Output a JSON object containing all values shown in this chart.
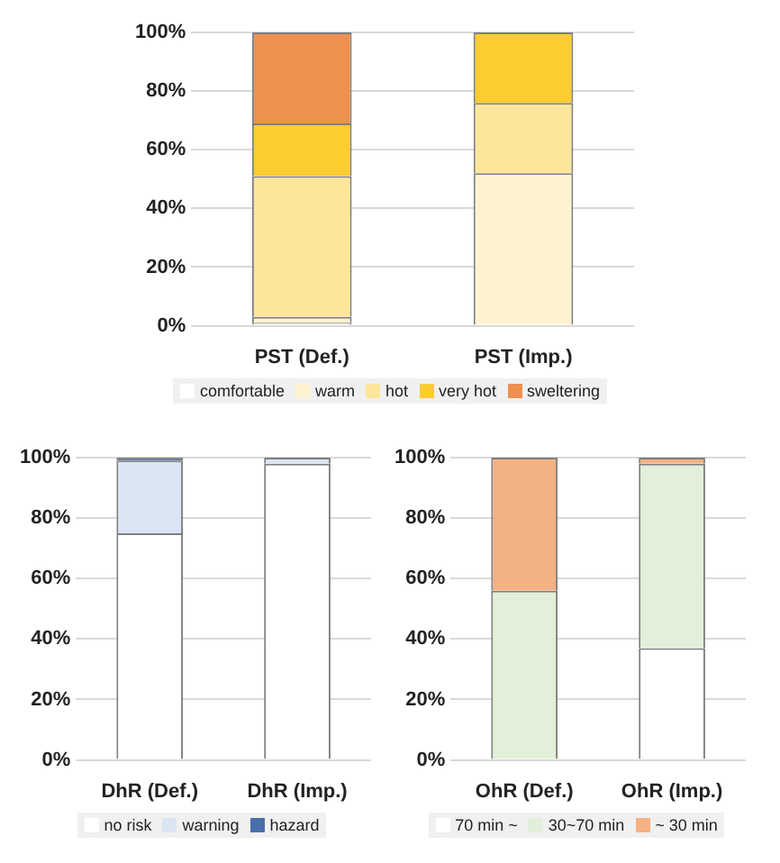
{
  "chart_data": [
    {
      "type": "bar",
      "stacked": true,
      "categories": [
        "PST (Def.)",
        "PST (Imp.)"
      ],
      "series": [
        {
          "name": "comfortable",
          "color": "#ffffff",
          "values": [
            1,
            0
          ]
        },
        {
          "name": "warm",
          "color": "#fdf3d0",
          "values": [
            2,
            52
          ]
        },
        {
          "name": "hot",
          "color": "#fde69a",
          "values": [
            48,
            24
          ]
        },
        {
          "name": "very hot",
          "color": "#fccd2f",
          "values": [
            18,
            24
          ]
        },
        {
          "name": "sweltering",
          "color": "#ee9050",
          "values": [
            31,
            0
          ]
        }
      ],
      "ylim": [
        0,
        100
      ],
      "yticks": [
        {
          "value": 0,
          "label": "0%"
        },
        {
          "value": 20,
          "label": "20%"
        },
        {
          "value": 40,
          "label": "40%"
        },
        {
          "value": 60,
          "label": "60%"
        },
        {
          "value": 80,
          "label": "80%"
        },
        {
          "value": 100,
          "label": "100%"
        }
      ],
      "grid": "y",
      "legend": "bottom"
    },
    {
      "type": "bar",
      "stacked": true,
      "categories": [
        "DhR (Def.)",
        "DhR (Imp.)"
      ],
      "series": [
        {
          "name": "no risk",
          "color": "#ffffff",
          "values": [
            75,
            98
          ]
        },
        {
          "name": "warning",
          "color": "#dbe5f3",
          "values": [
            24,
            2
          ]
        },
        {
          "name": "hazard",
          "color": "#4a6fa8",
          "values": [
            1,
            0
          ]
        }
      ],
      "ylim": [
        0,
        100
      ],
      "yticks": [
        {
          "value": 0,
          "label": "0%"
        },
        {
          "value": 20,
          "label": "20%"
        },
        {
          "value": 40,
          "label": "40%"
        },
        {
          "value": 60,
          "label": "60%"
        },
        {
          "value": 80,
          "label": "80%"
        },
        {
          "value": 100,
          "label": "100%"
        }
      ],
      "grid": "y",
      "legend": "bottom"
    },
    {
      "type": "bar",
      "stacked": true,
      "categories": [
        "OhR (Def.)",
        "OhR (Imp.)"
      ],
      "series": [
        {
          "name": "70 min ~",
          "color": "#ffffff",
          "values": [
            0,
            37
          ]
        },
        {
          "name": "30~70 min",
          "color": "#e2efd9",
          "values": [
            56,
            61
          ]
        },
        {
          "name": "~ 30 min",
          "color": "#f4b183",
          "values": [
            44,
            2
          ]
        }
      ],
      "ylim": [
        0,
        100
      ],
      "yticks": [
        {
          "value": 0,
          "label": "0%"
        },
        {
          "value": 20,
          "label": "20%"
        },
        {
          "value": 40,
          "label": "40%"
        },
        {
          "value": 60,
          "label": "60%"
        },
        {
          "value": 80,
          "label": "80%"
        },
        {
          "value": 100,
          "label": "100%"
        }
      ],
      "grid": "y",
      "legend": "bottom"
    }
  ]
}
